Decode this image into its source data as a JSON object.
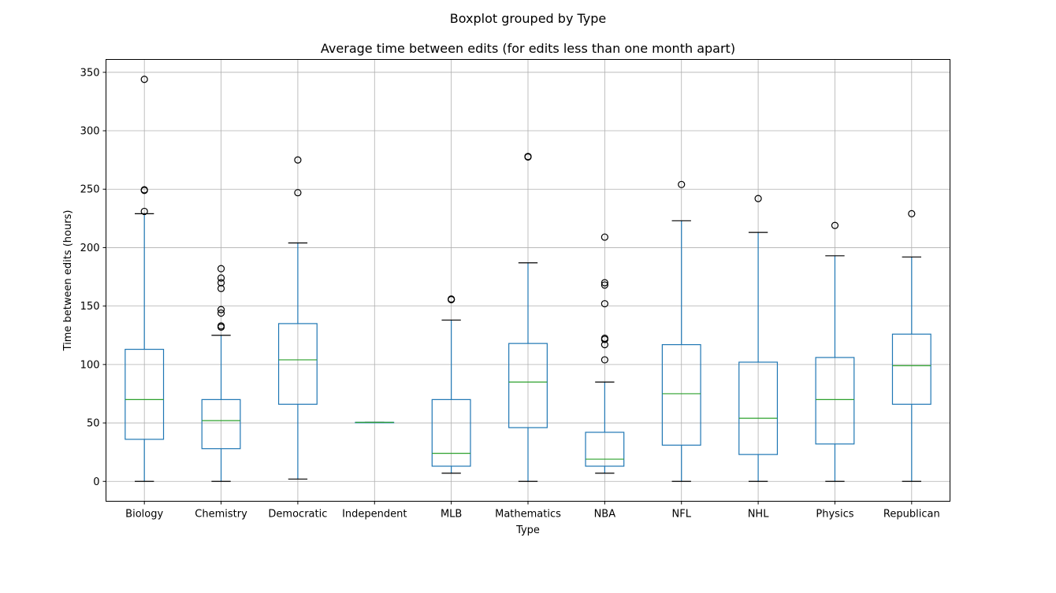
{
  "chart_data": {
    "type": "boxplot",
    "suptitle": "Boxplot grouped by Type",
    "title": "Average time between edits (for edits less than one month apart)",
    "xlabel": "Type",
    "ylabel": "Time between edits (hours)",
    "ylim": [
      -17,
      361
    ],
    "yticks": [
      0,
      50,
      100,
      150,
      200,
      250,
      300,
      350
    ],
    "grid": true,
    "colors": {
      "box": "#1f77b4",
      "median": "#2ca02c",
      "cap": "#000000",
      "grid": "#b0b0b0"
    },
    "categories": [
      "Biology",
      "Chemistry",
      "Democratic",
      "Independent",
      "MLB",
      "Mathematics",
      "NBA",
      "NFL",
      "NHL",
      "Physics",
      "Republican"
    ],
    "boxes": [
      {
        "category": "Biology",
        "whislo": 0,
        "q1": 36,
        "med": 70,
        "q3": 113,
        "whishi": 229,
        "fliers": [
          231,
          249,
          249.5,
          344
        ]
      },
      {
        "category": "Chemistry",
        "whislo": 0,
        "q1": 28,
        "med": 52,
        "q3": 70,
        "whishi": 125,
        "fliers": [
          132,
          133,
          144,
          147,
          165,
          170,
          174,
          182
        ]
      },
      {
        "category": "Democratic",
        "whislo": 2,
        "q1": 66,
        "med": 104,
        "q3": 135,
        "whishi": 204,
        "fliers": [
          247,
          275
        ]
      },
      {
        "category": "Independent",
        "whislo": 50.5,
        "q1": 50.5,
        "med": 50.5,
        "q3": 50.5,
        "whishi": 50.5,
        "fliers": []
      },
      {
        "category": "MLB",
        "whislo": 7,
        "q1": 13,
        "med": 24,
        "q3": 70,
        "whishi": 138,
        "fliers": [
          155.5,
          156
        ]
      },
      {
        "category": "Mathematics",
        "whislo": 0,
        "q1": 46,
        "med": 85,
        "q3": 118,
        "whishi": 187,
        "fliers": [
          277.5,
          278
        ]
      },
      {
        "category": "NBA",
        "whislo": 7,
        "q1": 13,
        "med": 19,
        "q3": 42,
        "whishi": 85,
        "fliers": [
          104,
          117,
          121.5,
          122.5,
          152,
          168,
          170,
          209
        ]
      },
      {
        "category": "NFL",
        "whislo": 0,
        "q1": 31,
        "med": 75,
        "q3": 117,
        "whishi": 223,
        "fliers": [
          254
        ]
      },
      {
        "category": "NHL",
        "whislo": 0,
        "q1": 23,
        "med": 54,
        "q3": 102,
        "whishi": 213,
        "fliers": [
          242
        ]
      },
      {
        "category": "Physics",
        "whislo": 0,
        "q1": 32,
        "med": 70,
        "q3": 106,
        "whishi": 193,
        "fliers": [
          219
        ]
      },
      {
        "category": "Republican",
        "whislo": 0,
        "q1": 66,
        "med": 99,
        "q3": 126,
        "whishi": 192,
        "fliers": [
          229
        ]
      }
    ]
  }
}
